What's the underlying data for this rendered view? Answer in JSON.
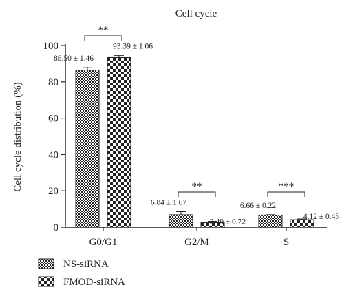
{
  "chart_data": {
    "type": "bar",
    "title": "Cell cycle",
    "ylabel": "Cell cycle distribution (%)",
    "xlabel": "",
    "ylim": [
      0,
      100
    ],
    "yticks": [
      0,
      20,
      40,
      60,
      80,
      100
    ],
    "categories": [
      "G0/G1",
      "G2/M",
      "S"
    ],
    "series": [
      {
        "name": "NS-siRNA",
        "pattern": "fine-checker",
        "values": [
          86.5,
          6.84,
          6.66
        ],
        "errors": [
          1.46,
          1.67,
          0.22
        ],
        "labels": [
          "86.50 ± 1.46",
          "6.84 ± 1.67",
          "6.66 ± 0.22"
        ]
      },
      {
        "name": "FMOD-siRNA",
        "pattern": "coarse-checker",
        "values": [
          93.39,
          2.49,
          4.12
        ],
        "errors": [
          1.06,
          0.72,
          0.43
        ],
        "labels": [
          "93.39 ± 1.06",
          "2.49 ± 0.72",
          "4.12 ± 0.43"
        ]
      }
    ],
    "significance": [
      "**",
      "**",
      "***"
    ],
    "grid": false,
    "legend_position": "bottom-left"
  },
  "colors": {
    "ink": "#222222",
    "paper": "#ffffff"
  }
}
